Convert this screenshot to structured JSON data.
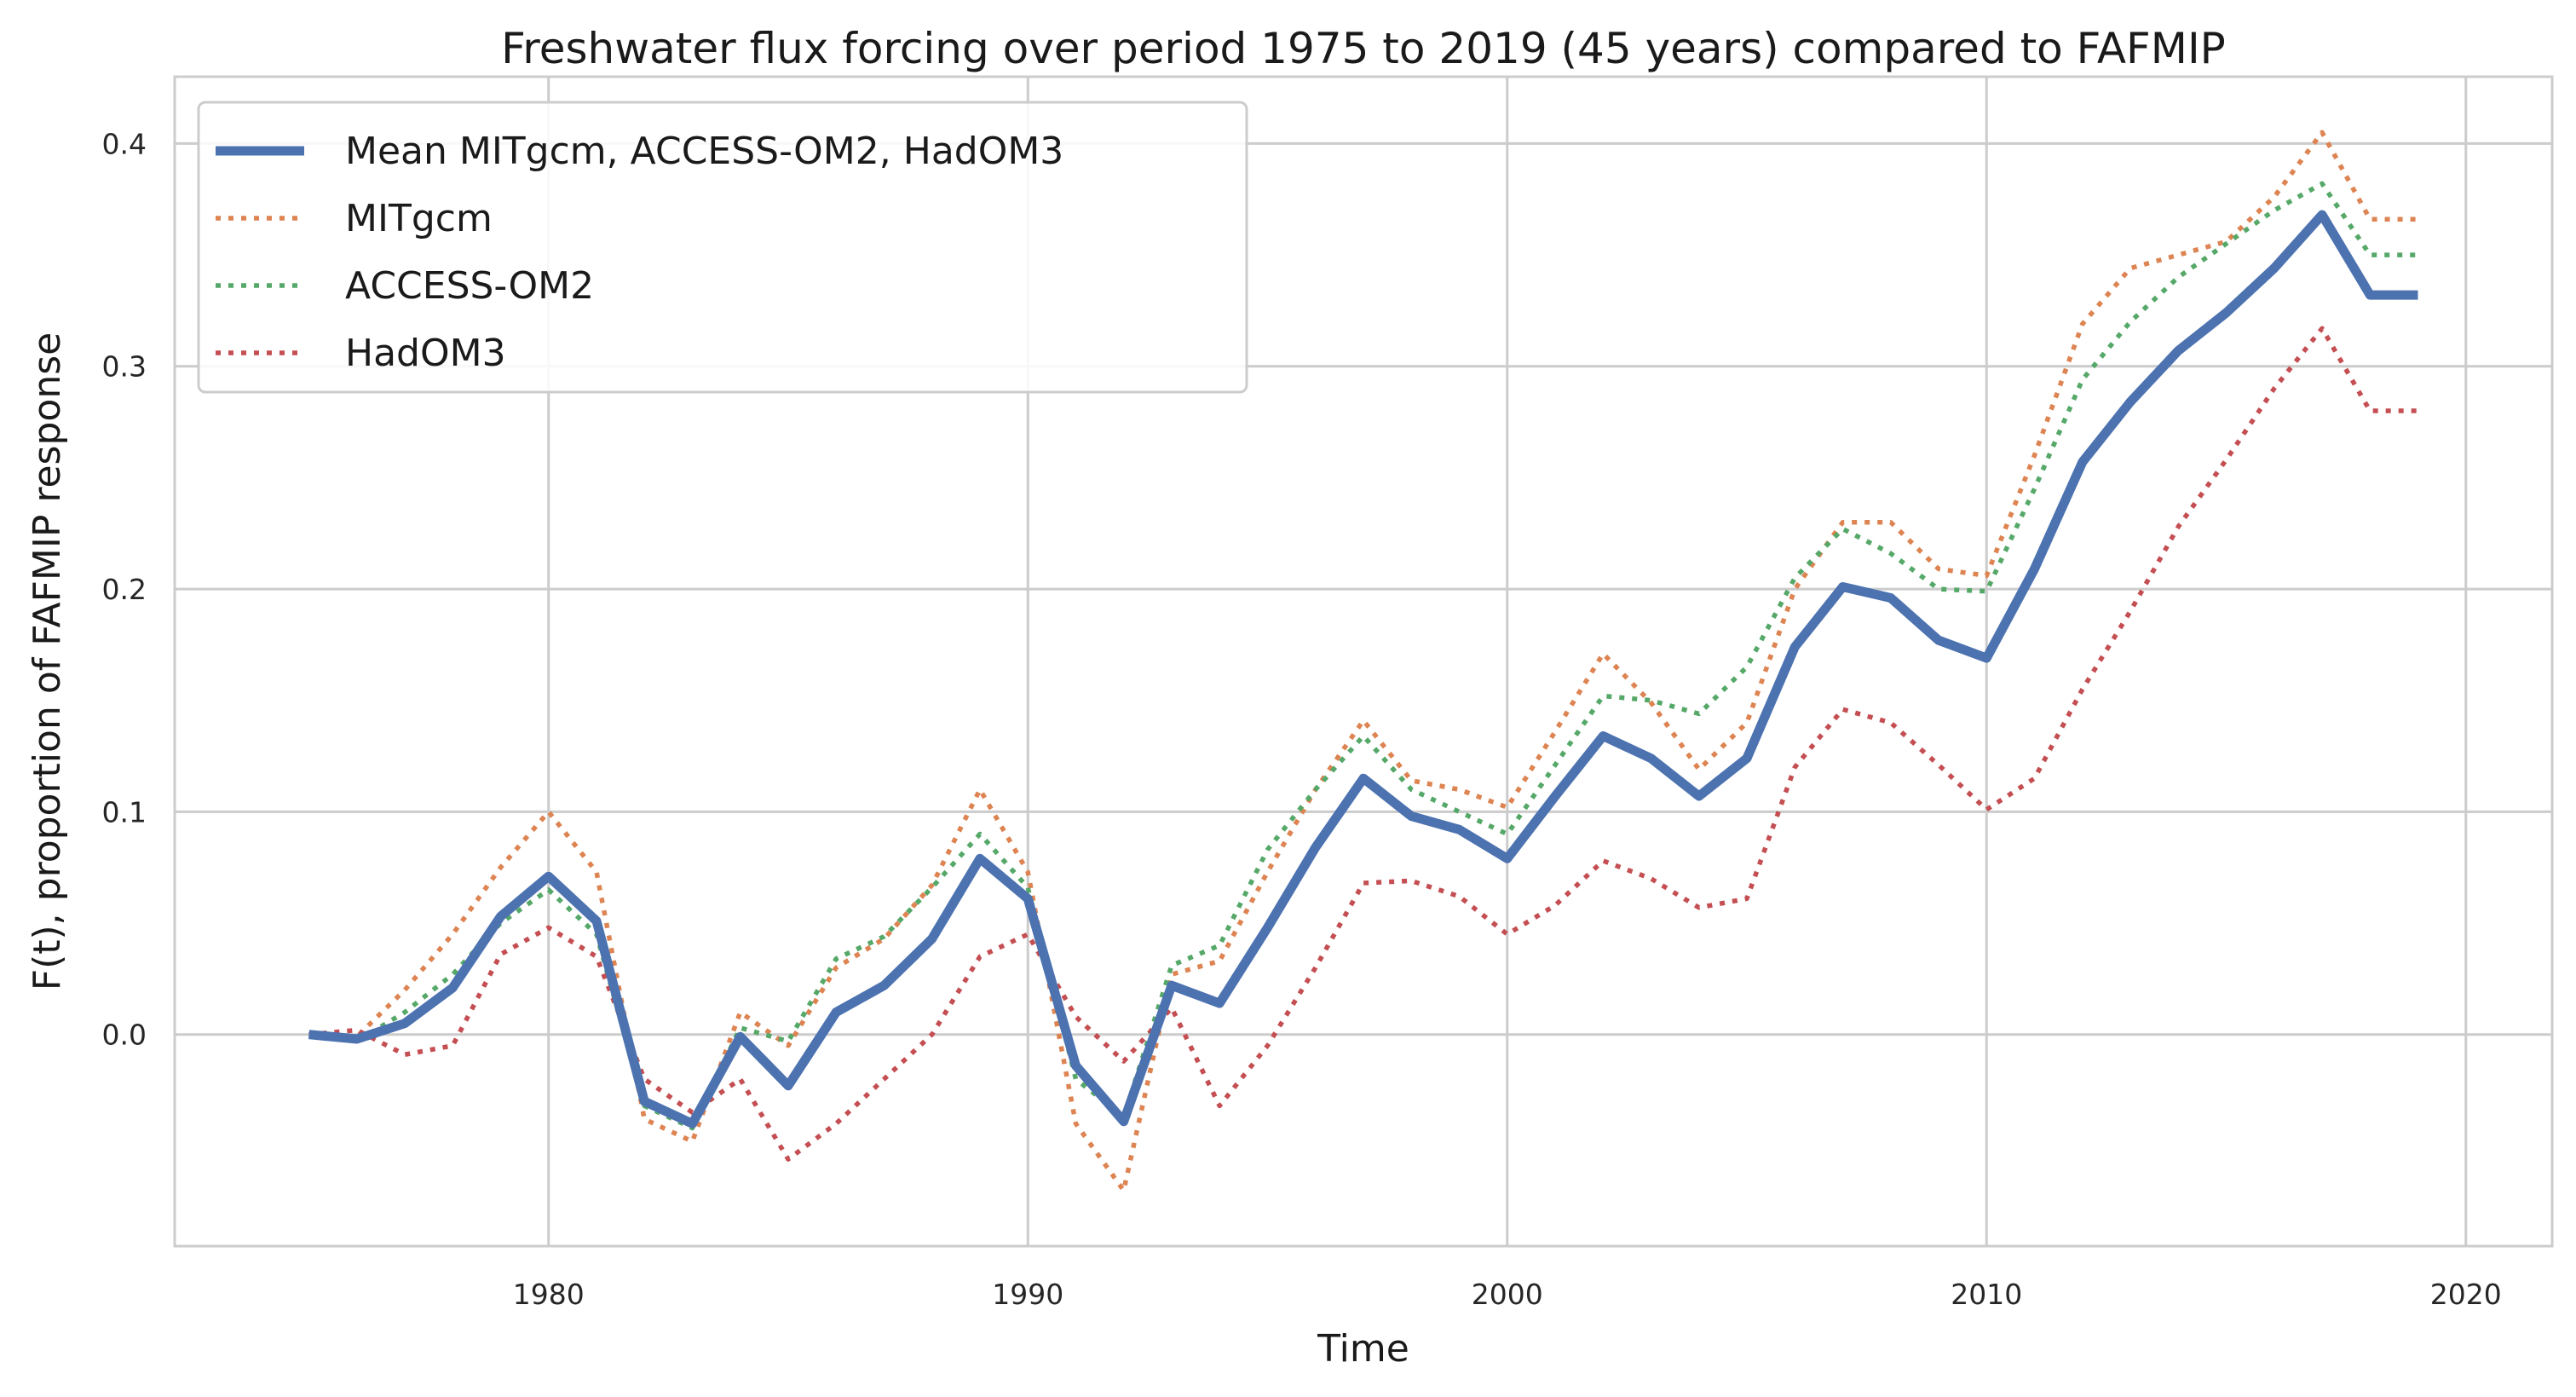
{
  "chart_data": {
    "type": "line",
    "title": "Freshwater flux forcing over period 1975 to 2019 (45 years) compared to FAFMIP",
    "xlabel": "Time",
    "ylabel": "F(t), proportion of FAFMIP response",
    "xlim": [
      1972.2,
      2021.8
    ],
    "ylim": [
      -0.095,
      0.43
    ],
    "xticks": [
      1980,
      1990,
      2000,
      2010,
      2020
    ],
    "yticks": [
      0.0,
      0.1,
      0.2,
      0.3,
      0.4
    ],
    "xtick_labels": [
      "1980",
      "1990",
      "2000",
      "2010",
      "2020"
    ],
    "ytick_labels": [
      "0.0",
      "0.1",
      "0.2",
      "0.3",
      "0.4"
    ],
    "grid": true,
    "legend_position": "top-left",
    "x": [
      1975,
      1976,
      1977,
      1978,
      1979,
      1980,
      1981,
      1982,
      1983,
      1984,
      1985,
      1986,
      1987,
      1988,
      1989,
      1990,
      1991,
      1992,
      1993,
      1994,
      1995,
      1996,
      1997,
      1998,
      1999,
      2000,
      2001,
      2002,
      2003,
      2004,
      2005,
      2006,
      2007,
      2008,
      2009,
      2010,
      2011,
      2012,
      2013,
      2014,
      2015,
      2016,
      2017,
      2018,
      2019
    ],
    "series": [
      {
        "name": "Mean MITgcm, ACCESS-OM2, HadOM3",
        "color": "#4c72b0",
        "style": "solid",
        "values": [
          0.0,
          -0.002,
          0.005,
          0.021,
          0.053,
          0.071,
          0.051,
          -0.03,
          -0.04,
          -0.001,
          -0.023,
          0.01,
          0.022,
          0.043,
          0.079,
          0.061,
          -0.014,
          -0.039,
          0.022,
          0.014,
          0.048,
          0.084,
          0.115,
          0.098,
          0.092,
          0.079,
          0.107,
          0.134,
          0.124,
          0.107,
          0.124,
          0.174,
          0.201,
          0.196,
          0.177,
          0.169,
          0.209,
          0.257,
          0.284,
          0.307,
          0.324,
          0.344,
          0.368,
          0.332,
          0.332
        ]
      },
      {
        "name": "MITgcm",
        "color": "#dd8452",
        "style": "dotted",
        "values": [
          0.0,
          -0.001,
          0.02,
          0.045,
          0.075,
          0.1,
          0.073,
          -0.038,
          -0.048,
          0.01,
          -0.005,
          0.03,
          0.043,
          0.067,
          0.11,
          0.073,
          -0.04,
          -0.07,
          0.027,
          0.033,
          0.073,
          0.11,
          0.141,
          0.114,
          0.11,
          0.102,
          0.136,
          0.171,
          0.149,
          0.119,
          0.14,
          0.2,
          0.23,
          0.23,
          0.209,
          0.206,
          0.26,
          0.319,
          0.344,
          0.35,
          0.356,
          0.376,
          0.405,
          0.366,
          0.366
        ]
      },
      {
        "name": "ACCESS-OM2",
        "color": "#55a868",
        "style": "dotted",
        "values": [
          0.0,
          -0.003,
          0.01,
          0.027,
          0.05,
          0.065,
          0.045,
          -0.032,
          -0.042,
          0.003,
          -0.003,
          0.034,
          0.044,
          0.066,
          0.09,
          0.066,
          -0.02,
          -0.037,
          0.031,
          0.04,
          0.083,
          0.11,
          0.134,
          0.11,
          0.1,
          0.09,
          0.121,
          0.152,
          0.15,
          0.144,
          0.165,
          0.205,
          0.227,
          0.216,
          0.2,
          0.199,
          0.245,
          0.294,
          0.32,
          0.34,
          0.355,
          0.37,
          0.382,
          0.35,
          0.35
        ]
      },
      {
        "name": "HadOM3",
        "color": "#c44e52",
        "style": "dotted",
        "values": [
          0.0,
          0.002,
          -0.009,
          -0.005,
          0.036,
          0.048,
          0.035,
          -0.02,
          -0.035,
          -0.02,
          -0.056,
          -0.04,
          -0.02,
          0.0,
          0.035,
          0.045,
          0.008,
          -0.012,
          0.012,
          -0.032,
          -0.005,
          0.03,
          0.068,
          0.069,
          0.062,
          0.045,
          0.058,
          0.078,
          0.07,
          0.057,
          0.061,
          0.12,
          0.146,
          0.14,
          0.121,
          0.101,
          0.115,
          0.155,
          0.19,
          0.228,
          0.258,
          0.29,
          0.317,
          0.28,
          0.28
        ]
      }
    ]
  }
}
